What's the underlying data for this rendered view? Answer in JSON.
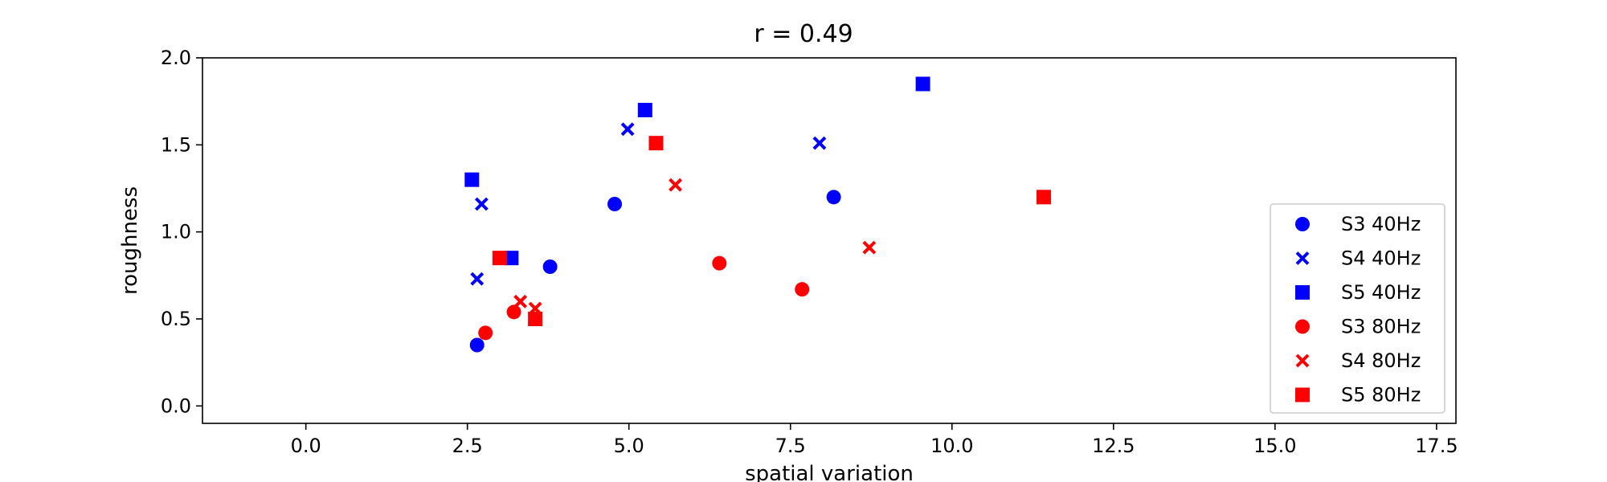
{
  "chart_data": {
    "type": "scatter",
    "title": "r = 0.49",
    "xlabel": "spatial variation",
    "ylabel": "roughness",
    "xlim": [
      -1.6,
      17.8
    ],
    "ylim": [
      -0.1,
      2.0
    ],
    "xticks": [
      0.0,
      2.5,
      5.0,
      7.5,
      10.0,
      12.5,
      15.0,
      17.5
    ],
    "xtick_labels": [
      "0.0",
      "2.5",
      "5.0",
      "7.5",
      "10.0",
      "12.5",
      "15.0",
      "17.5"
    ],
    "yticks": [
      0.0,
      0.5,
      1.0,
      1.5,
      2.0
    ],
    "ytick_labels": [
      "0.0",
      "0.5",
      "1.0",
      "1.5",
      "2.0"
    ],
    "grid": false,
    "legend_position": "lower-right",
    "series": [
      {
        "name": "S3 40Hz",
        "color": "#0000ff",
        "marker": "circle",
        "points": [
          [
            2.65,
            0.35
          ],
          [
            3.78,
            0.8
          ],
          [
            4.78,
            1.16
          ],
          [
            8.17,
            1.2
          ]
        ]
      },
      {
        "name": "S4 40Hz",
        "color": "#0000ff",
        "marker": "x",
        "points": [
          [
            2.65,
            0.73
          ],
          [
            2.72,
            1.16
          ],
          [
            4.98,
            1.59
          ],
          [
            7.95,
            1.51
          ]
        ]
      },
      {
        "name": "S5 40Hz",
        "color": "#0000ff",
        "marker": "square",
        "points": [
          [
            2.57,
            1.3
          ],
          [
            3.18,
            0.85
          ],
          [
            5.25,
            1.7
          ],
          [
            9.55,
            1.85
          ]
        ]
      },
      {
        "name": "S3 80Hz",
        "color": "#ff0000",
        "marker": "circle",
        "points": [
          [
            2.78,
            0.42
          ],
          [
            3.22,
            0.54
          ],
          [
            6.4,
            0.82
          ],
          [
            7.68,
            0.67
          ]
        ]
      },
      {
        "name": "S4 80Hz",
        "color": "#ff0000",
        "marker": "x",
        "points": [
          [
            3.32,
            0.6
          ],
          [
            3.55,
            0.56
          ],
          [
            5.72,
            1.27
          ],
          [
            8.72,
            0.91
          ]
        ]
      },
      {
        "name": "S5 80Hz",
        "color": "#ff0000",
        "marker": "square",
        "points": [
          [
            3.0,
            0.85
          ],
          [
            3.55,
            0.5
          ],
          [
            5.42,
            1.51
          ],
          [
            11.42,
            1.2
          ]
        ]
      }
    ]
  }
}
